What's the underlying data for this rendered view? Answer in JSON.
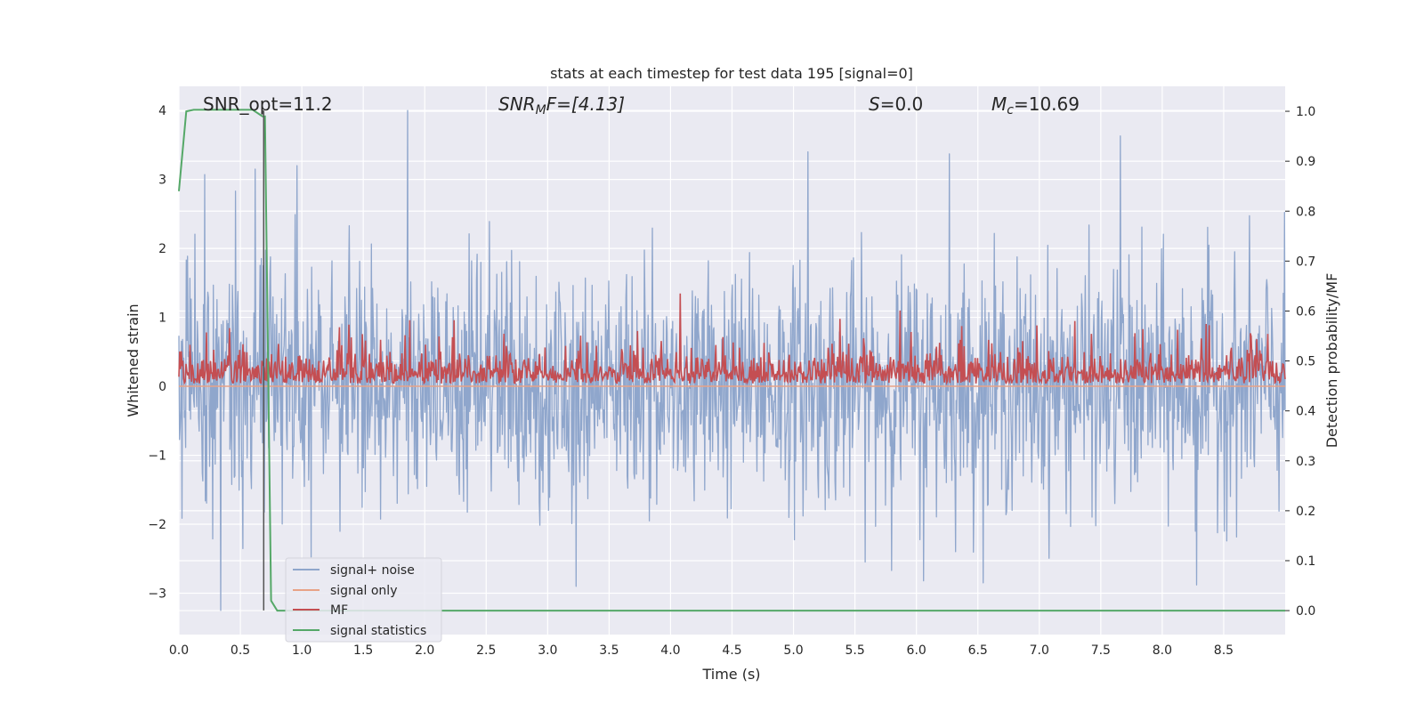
{
  "chart_data": {
    "type": "line",
    "title": "stats at each timestep for test data 195 [signal=0]",
    "xlabel": "Time (s)",
    "ylabel_left": "Whitened strain",
    "ylabel_right": "Detection probability/MF",
    "xlim": [
      0.0,
      9.0
    ],
    "ylim_left": [
      -3.6,
      4.35
    ],
    "ylim_right": [
      -0.048,
      1.05
    ],
    "xticks": [
      "0.0",
      "0.5",
      "1.0",
      "1.5",
      "2.0",
      "2.5",
      "3.0",
      "3.5",
      "4.0",
      "4.5",
      "5.0",
      "5.5",
      "6.0",
      "6.5",
      "7.0",
      "7.5",
      "8.0",
      "8.5"
    ],
    "yticks_left": [
      "4",
      "3",
      "2",
      "1",
      "0",
      "−1",
      "−2",
      "−3"
    ],
    "yticks_right": [
      "1.0",
      "0.9",
      "0.8",
      "0.7",
      "0.6",
      "0.5",
      "0.4",
      "0.3",
      "0.2",
      "0.1",
      "0.0"
    ],
    "grid": true,
    "legend_placement": "lower-left",
    "annotations": {
      "snr_opt": "SNR_opt=11.2",
      "snr_mf_base": "SNR",
      "snr_mf_sub": "M",
      "snr_mf_rest": "F=[4.13]",
      "s_sym": "S",
      "s_val": "=0.0",
      "mc_base": "M",
      "mc_sub": "c",
      "mc_val": "=10.69"
    },
    "series": [
      {
        "name": "signal+ noise",
        "axis": "left",
        "color": "#8fa6cc",
        "description_stats": {
          "mean": 0.0,
          "std": 1.0,
          "min": -3.25,
          "max": 4.0
        },
        "spikes": [
          {
            "x": 0.21,
            "y": 3.07
          },
          {
            "x": 0.46,
            "y": 2.83
          },
          {
            "x": 0.62,
            "y": 3.15
          },
          {
            "x": 0.96,
            "y": 3.2
          },
          {
            "x": 1.86,
            "y": 4.0
          },
          {
            "x": 5.12,
            "y": 3.4
          },
          {
            "x": 6.27,
            "y": 3.37
          },
          {
            "x": 7.66,
            "y": 3.63
          },
          {
            "x": 0.34,
            "y": -3.25
          },
          {
            "x": 3.23,
            "y": -2.9
          },
          {
            "x": 6.06,
            "y": -2.82
          },
          {
            "x": 8.28,
            "y": -2.88
          }
        ]
      },
      {
        "name": "signal only",
        "axis": "left",
        "color": "#e8a286",
        "values_constant": 0.0
      },
      {
        "name": "MF",
        "axis": "right",
        "color": "#c44e52",
        "description_stats": {
          "baseline": 0.47,
          "min": 0.435,
          "max": 0.635
        }
      },
      {
        "name": "signal statistics",
        "axis": "right",
        "color": "#55a868",
        "x": [
          0.0,
          0.06,
          0.12,
          0.5,
          0.6,
          0.68,
          0.7,
          0.75,
          0.8,
          0.85,
          9.0
        ],
        "values": [
          0.84,
          1.0,
          1.003,
          1.003,
          1.003,
          0.99,
          0.99,
          0.02,
          0.0,
          0.0,
          0.0
        ]
      }
    ],
    "vline": {
      "x": 0.69,
      "y_from": -3.25,
      "y_to": 4.0,
      "color": "#555555"
    }
  }
}
